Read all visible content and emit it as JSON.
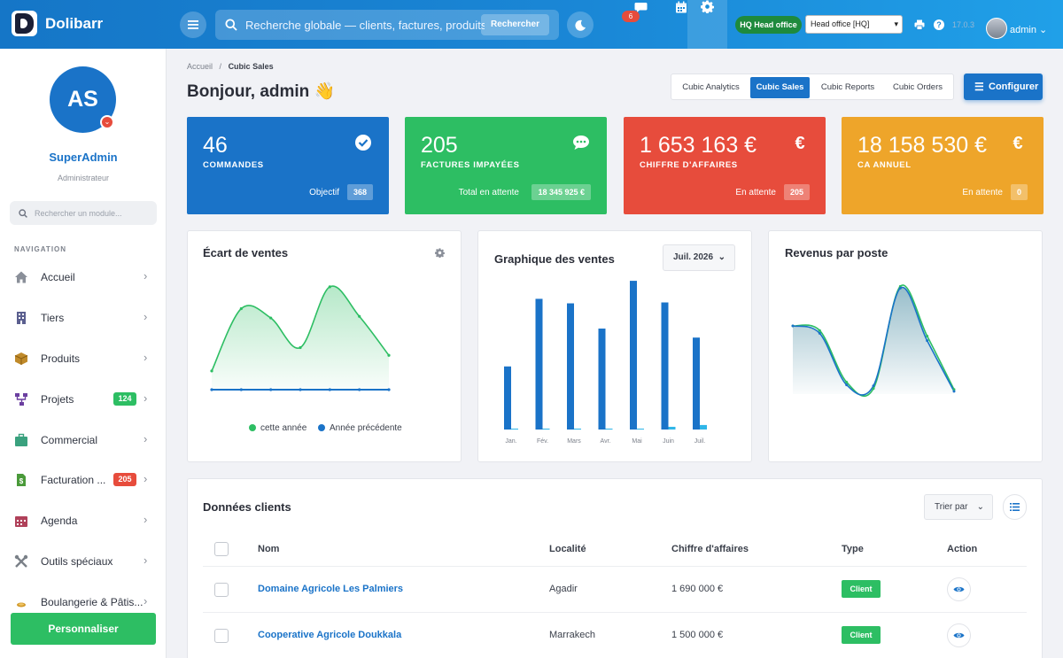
{
  "app": {
    "brand": "Dolibarr"
  },
  "topbar": {
    "search_placeholder": "Recherche globale — clients, factures, produits...",
    "search_button": "Rechercher",
    "notifications_count": "6",
    "hq_badge": "HQ Head office",
    "entity_select": "Head office [HQ]",
    "version": "17.0.3",
    "user": "admin"
  },
  "sidebar": {
    "avatar_initials": "AS",
    "name": "SuperAdmin",
    "role": "Administrateur",
    "search_placeholder": "Rechercher un module...",
    "section": "NAVIGATION",
    "items": [
      {
        "label": "Accueil",
        "icon": "home-icon",
        "color": "#8a8f99"
      },
      {
        "label": "Tiers",
        "icon": "building-icon",
        "color": "#5b5f8f"
      },
      {
        "label": "Produits",
        "icon": "box-icon",
        "color": "#c08a2a"
      },
      {
        "label": "Projets",
        "icon": "sitemap-icon",
        "color": "#6b3fa0",
        "badge": "124",
        "badge_color": "#2dbe63"
      },
      {
        "label": "Commercial",
        "icon": "briefcase-icon",
        "color": "#3aa17e"
      },
      {
        "label": "Facturation ...",
        "icon": "invoice-icon",
        "color": "#4a9a3a",
        "badge": "205",
        "badge_color": "#e74c3c"
      },
      {
        "label": "Agenda",
        "icon": "calendar-icon",
        "color": "#b0415a"
      },
      {
        "label": "Outils spéciaux",
        "icon": "tools-icon",
        "color": "#7a8088"
      },
      {
        "label": "Boulangerie & Pâtis...",
        "icon": "bread-icon",
        "color": "#d19a2a"
      }
    ],
    "personnaliser": "Personnaliser"
  },
  "main": {
    "breadcrumb": {
      "home": "Accueil",
      "sep": "/",
      "current": "Cubic Sales"
    },
    "greeting": "Bonjour, admin 👋",
    "tabs": [
      "Cubic Analytics",
      "Cubic Sales",
      "Cubic Reports",
      "Cubic Orders"
    ],
    "active_tab": "Cubic Sales",
    "configure": "Configurer"
  },
  "kpis": [
    {
      "value": "46",
      "label": "COMMANDES",
      "sub": "Objectif",
      "pill": "368",
      "color": "#1a73c8",
      "icon": "check-circle-icon"
    },
    {
      "value": "205",
      "label": "FACTURES IMPAYÉES",
      "sub": "Total en attente",
      "pill": "18 345 925 €",
      "color": "#2dbe63",
      "icon": "chat-icon"
    },
    {
      "value": "1 653 163 €",
      "label": "CHIFFRE D'AFFAIRES",
      "sub": "En attente",
      "pill": "205",
      "color": "#e74c3c",
      "icon": "euro-icon"
    },
    {
      "value": "18 158 530 €",
      "label": "CA ANNUEL",
      "sub": "En attente",
      "pill": "0",
      "color": "#eea52a",
      "icon": "euro-icon"
    }
  ],
  "charts": {
    "ecart": {
      "title": "Écart de ventes",
      "legend": [
        "cette année",
        "Année précédente"
      ]
    },
    "graphique": {
      "title": "Graphique des ventes",
      "month": "Juil. 2026"
    },
    "revenus": {
      "title": "Revenus par poste"
    }
  },
  "chart_data": [
    {
      "type": "area",
      "title": "Écart de ventes",
      "x": [
        1,
        2,
        3,
        4,
        5,
        6,
        7
      ],
      "series": [
        {
          "name": "cette année",
          "values": [
            12,
            52,
            46,
            27,
            66,
            47,
            22
          ],
          "color": "#2dbe63"
        },
        {
          "name": "Année précédente",
          "values": [
            0,
            0,
            0,
            0,
            0,
            0,
            0
          ],
          "color": "#1a73c8"
        }
      ],
      "ylim": [
        0,
        75
      ],
      "grid": false,
      "legend": "bottom"
    },
    {
      "type": "bar",
      "title": "Graphique des ventes",
      "categories": [
        "Jan.",
        "Fév.",
        "Mars",
        "Avr.",
        "Mai",
        "Juin",
        "Juil."
      ],
      "series": [
        {
          "values": [
            70,
            145,
            140,
            112,
            165,
            141,
            102
          ],
          "color": "#1a73c8"
        },
        {
          "values": [
            1,
            1,
            1,
            1,
            1,
            3,
            5
          ],
          "color": "#2fb6e8"
        }
      ],
      "ylim": [
        0,
        170
      ]
    },
    {
      "type": "area",
      "title": "Revenus par poste",
      "x": [
        1,
        2,
        3,
        4,
        5,
        6,
        7
      ],
      "series": [
        {
          "values": [
            74,
            69,
            13,
            6,
            117,
            63,
            5
          ],
          "color": "#2dbe63"
        },
        {
          "values": [
            74,
            66,
            10,
            9,
            115,
            58,
            3
          ],
          "color": "#1a73c8"
        }
      ],
      "ylim": [
        0,
        125
      ]
    }
  ],
  "table": {
    "title": "Données clients",
    "sort_label": "Trier par",
    "headers": [
      "Nom",
      "Localité",
      "Chiffre d'affaires",
      "Type",
      "Action"
    ],
    "rows": [
      {
        "name": "Domaine Agricole Les Palmiers",
        "city": "Agadir",
        "revenue": "1 690 000 €",
        "type": "Client"
      },
      {
        "name": "Cooperative Agricole Doukkala",
        "city": "Marrakech",
        "revenue": "1 500 000 €",
        "type": "Client"
      }
    ]
  }
}
